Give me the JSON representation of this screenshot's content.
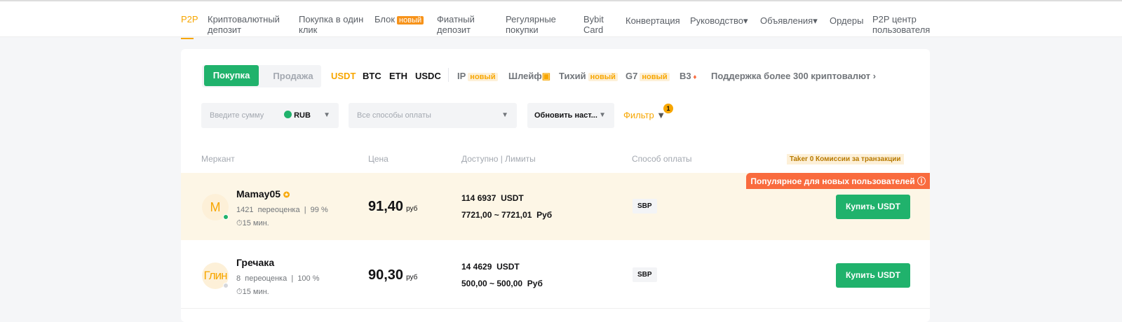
{
  "nav": {
    "items": [
      "P2P",
      "Криптовалютный депозит",
      "Покупка в один клик",
      "Блок",
      "Фиатный депозит",
      "Регулярные покупки",
      "Bybit Card",
      "Конвертация",
      "Руководство",
      "Объявления",
      "Ордеры",
      "P2P центр пользователя"
    ],
    "new_badge": "новый"
  },
  "toggle": {
    "buy": "Покупка",
    "sell": "Продажа"
  },
  "coins": [
    "USDT",
    "BTC",
    "ETH",
    "USDC"
  ],
  "extra_coins": [
    {
      "label": "IP",
      "tag": "новый"
    },
    {
      "label": "Шлейф",
      "icon": "gift-icon"
    },
    {
      "label": "Тихий",
      "tag": "новый"
    },
    {
      "label": "G7",
      "tag": "новый"
    },
    {
      "label": "B3",
      "icon": "fire-icon"
    }
  ],
  "support_link": "Поддержка более 300 криптовалют",
  "filters": {
    "amount_placeholder": "Введите сумму",
    "currency": "RUB",
    "payment": "Все способы оплаты",
    "refresh": "Обновить наст...",
    "filter": "Фильтр",
    "filter_count": "1"
  },
  "headers": {
    "merchant": "Меркант",
    "price": "Цена",
    "available": "Доступно | Лимиты",
    "payment": "Способ оплаты",
    "fee": "Taker 0 Комиссии за транзакции"
  },
  "popular_label": "Популярное для новых пользователей",
  "rows": [
    {
      "avatar": "M",
      "name": "Mamay05",
      "orders": "1421",
      "orders_label": "переоценка",
      "rate": "99 %",
      "time": "15 мин.",
      "price": "91,40",
      "price_unit": "руб",
      "available": "114 6937",
      "available_unit": "USDT",
      "limits": "7721,00 ~ 7721,01",
      "limits_unit": "Руб",
      "payment": "SBP",
      "action": "Купить USDT",
      "online": true
    },
    {
      "avatar": "Глин",
      "name": "Гречака",
      "orders": "8",
      "orders_label": "переоценка",
      "rate": "100 %",
      "time": "15 мин.",
      "price": "90,30",
      "price_unit": "руб",
      "available": "14 4629",
      "available_unit": "USDT",
      "limits": "500,00 ~ 500,00",
      "limits_unit": "Руб",
      "payment": "SBP",
      "action": "Купить USDT",
      "online": false
    }
  ],
  "colors": {
    "accent": "#f7a600",
    "buy": "#20b26c",
    "highlight_row": "#fdf6e6",
    "popular": "#f96b3e"
  }
}
